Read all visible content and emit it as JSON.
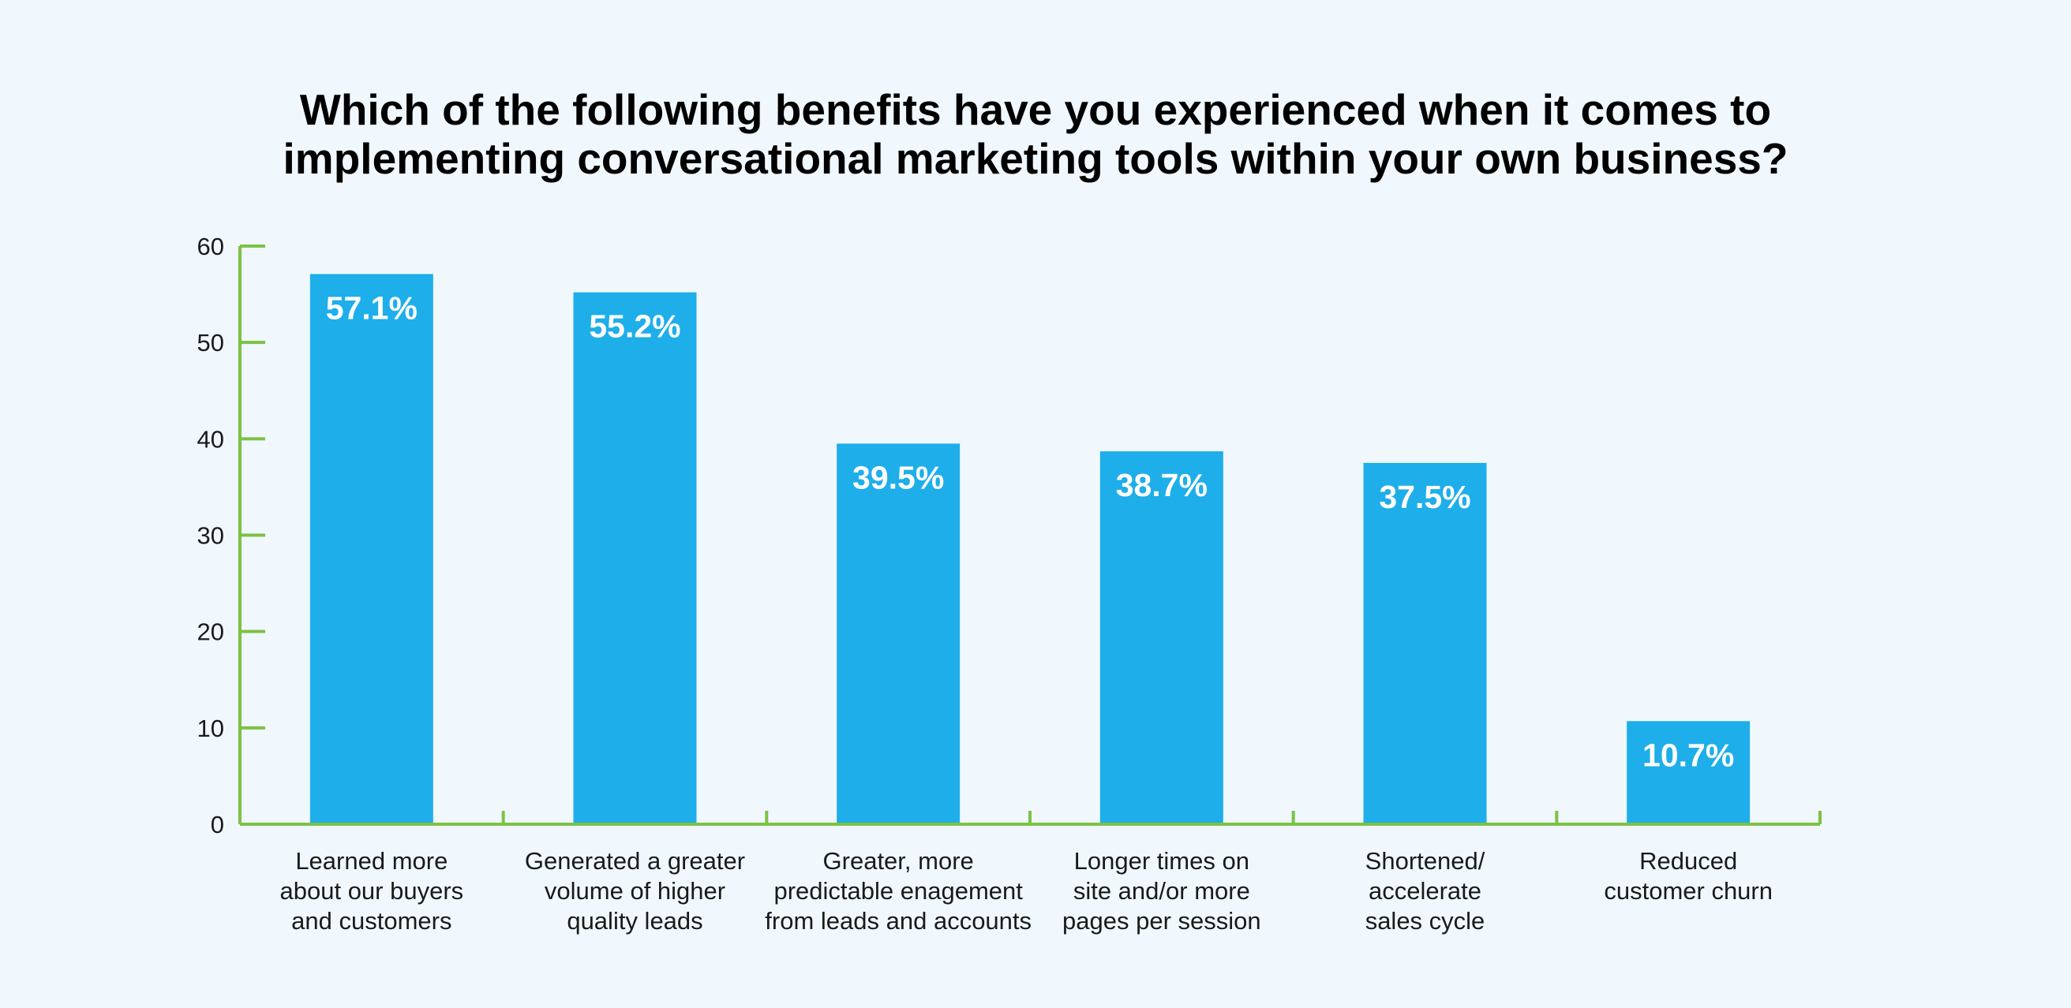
{
  "chart_data": {
    "type": "bar",
    "title_lines": [
      "Which of the following benefits have you experienced when it comes to",
      "implementing conversational marketing tools within your own business?"
    ],
    "categories": [
      [
        "Learned more",
        "about our buyers",
        "and customers"
      ],
      [
        "Generated a greater",
        "volume of higher",
        "quality leads"
      ],
      [
        "Greater, more",
        "predictable enagement",
        "from leads and accounts"
      ],
      [
        "Longer times on",
        "site and/or more",
        "pages per session"
      ],
      [
        "Shortened/",
        "accelerate",
        "sales cycle"
      ],
      [
        "Reduced",
        "customer churn"
      ]
    ],
    "values": [
      57.1,
      55.2,
      39.5,
      38.7,
      37.5,
      10.7
    ],
    "value_labels": [
      "57.1%",
      "55.2%",
      "39.5%",
      "38.7%",
      "37.5%",
      "10.7%"
    ],
    "yticks": [
      "0",
      "10",
      "20",
      "30",
      "40",
      "50",
      "60"
    ],
    "ylim": [
      0,
      60
    ],
    "grid": false,
    "legend": "none",
    "colors": {
      "bar": "#1eaeea",
      "axis": "#7dc243",
      "background": "#f0f8fd"
    }
  }
}
